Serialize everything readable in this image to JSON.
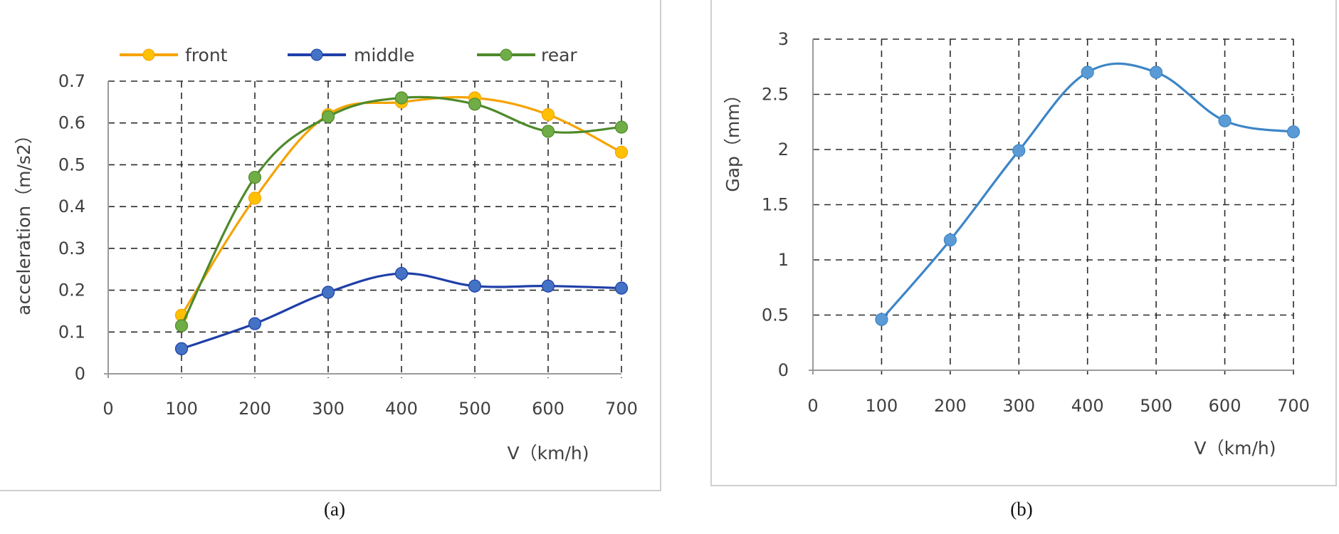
{
  "figure": {
    "captions": [
      "(a)",
      "(b)"
    ]
  },
  "chart_data": [
    {
      "id": "a",
      "type": "line",
      "smooth": true,
      "title": "",
      "xlabel": "V（km/h)",
      "ylabel": "acceleration（m/s2）",
      "x": [
        100,
        200,
        300,
        400,
        500,
        600,
        700
      ],
      "xlim": [
        0,
        700
      ],
      "ylim": [
        0,
        0.7
      ],
      "xticks": [
        "0",
        "100",
        "200",
        "300",
        "400",
        "500",
        "600",
        "700"
      ],
      "yticks": [
        "0",
        "0.1",
        "0.2",
        "0.3",
        "0.4",
        "0.5",
        "0.6",
        "0.7"
      ],
      "grid": true,
      "legend_position": "top",
      "series": [
        {
          "name": "front",
          "values": [
            0.14,
            0.42,
            0.62,
            0.65,
            0.66,
            0.62,
            0.53
          ],
          "line_color": "#F5A300",
          "marker_color": "#FFC000"
        },
        {
          "name": "middle",
          "values": [
            0.06,
            0.12,
            0.195,
            0.24,
            0.21,
            0.21,
            0.205
          ],
          "line_color": "#1F3FA8",
          "marker_color": "#4472C4"
        },
        {
          "name": "rear",
          "values": [
            0.115,
            0.47,
            0.615,
            0.66,
            0.645,
            0.58,
            0.59
          ],
          "line_color": "#4E8A2B",
          "marker_color": "#70AD47"
        }
      ]
    },
    {
      "id": "b",
      "type": "line",
      "smooth": true,
      "title": "",
      "xlabel": "V（km/h)",
      "ylabel": "Gap（mm）",
      "x": [
        100,
        200,
        300,
        400,
        500,
        600,
        700
      ],
      "xlim": [
        0,
        700
      ],
      "ylim": [
        0,
        3
      ],
      "xticks": [
        "0",
        "100",
        "200",
        "300",
        "400",
        "500",
        "600",
        "700"
      ],
      "yticks": [
        "0",
        "0.5",
        "1",
        "1.5",
        "2",
        "2.5",
        "3"
      ],
      "grid": true,
      "legend_position": "none",
      "series": [
        {
          "name": "Gap",
          "values": [
            0.46,
            1.18,
            1.99,
            2.7,
            2.7,
            2.26,
            2.16
          ],
          "line_color": "#3D85C6",
          "marker_color": "#5B9BD5"
        }
      ]
    }
  ]
}
